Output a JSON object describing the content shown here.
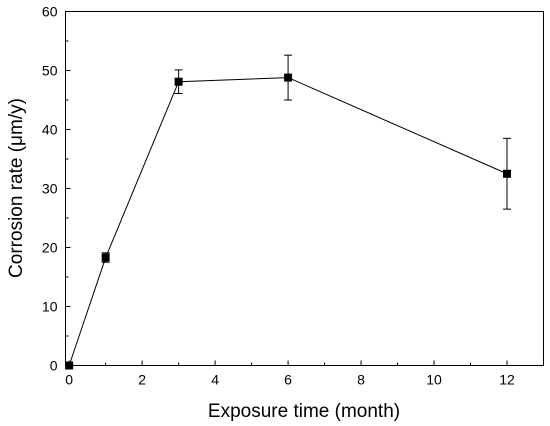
{
  "chart_data": {
    "type": "line",
    "title": "",
    "xlabel": "Exposure time (month)",
    "ylabel": "Corrosion rate (μm/y)",
    "xlim": [
      -0.1,
      13
    ],
    "ylim": [
      0,
      60
    ],
    "xticks": [
      0,
      2,
      4,
      6,
      8,
      10,
      12
    ],
    "yticks": [
      0,
      10,
      20,
      30,
      40,
      50,
      60
    ],
    "grid": false,
    "series": [
      {
        "marker": "square",
        "color": "#000000",
        "x": [
          0,
          1,
          3,
          6,
          12
        ],
        "y": [
          0,
          18.3,
          48.1,
          48.8,
          32.5
        ],
        "err_low": [
          0,
          0.8,
          2.0,
          3.8,
          6.0
        ],
        "err_high": [
          0,
          0.8,
          2.0,
          3.8,
          6.0
        ]
      }
    ]
  }
}
